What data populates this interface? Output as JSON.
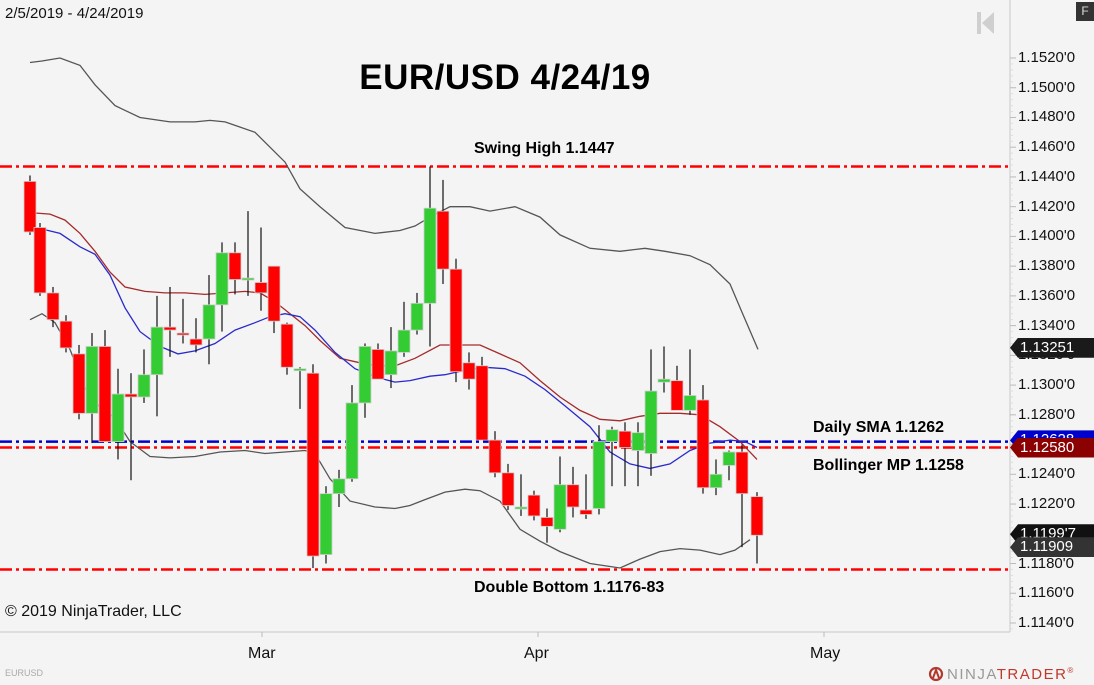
{
  "header": {
    "date_range": "2/5/2019 - 4/24/2019",
    "f_button": "F",
    "nav_icon": "go-to-start-icon"
  },
  "chart_title": "EUR/USD 4/24/19",
  "annotations": {
    "swing_high": "Swing High 1.1447",
    "daily_sma": "Daily SMA 1.1262",
    "bollinger_mp": "Bollinger MP 1.1258",
    "double_bottom": "Double Bottom 1.1176-83"
  },
  "footer": {
    "copyright": "© 2019 NinjaTrader, LLC",
    "instrument": "EURUSD",
    "brand_a": "NINJA",
    "brand_b": "TRADER",
    "brand_mark": "®"
  },
  "x_axis": {
    "labels": [
      {
        "text": "Mar",
        "x": 262
      },
      {
        "text": "Apr",
        "x": 538
      },
      {
        "text": "May",
        "x": 824
      }
    ]
  },
  "y_axis": {
    "ticks": [
      "1.1520'0",
      "1.1500'0",
      "1.1480'0",
      "1.1460'0",
      "1.1440'0",
      "1.1420'0",
      "1.1400'0",
      "1.1380'0",
      "1.1360'0",
      "1.1340'0",
      "1.1320'0",
      "1.1300'0",
      "1.1280'0",
      "1.1260'0",
      "1.1240'0",
      "1.1220'0",
      "1.1200'0",
      "1.1180'0",
      "1.1160'0",
      "1.1140'0"
    ]
  },
  "price_tags": [
    {
      "text": "1.13251",
      "price": 1.13251,
      "bg": "#1a1a1a",
      "fg": "#ffffff"
    },
    {
      "text": "1.12628",
      "price": 1.12628,
      "bg": "#0000cc",
      "fg": "#ffffff"
    },
    {
      "text": "1.12580",
      "price": 1.1258,
      "bg": "#8b0000",
      "fg": "#ffffff"
    },
    {
      "text": "1.1199'7",
      "price": 1.11997,
      "bg": "#111111",
      "fg": "#ffffff"
    },
    {
      "text": "1.11909",
      "price": 1.11909,
      "bg": "#333333",
      "fg": "#ffffff"
    }
  ],
  "colors": {
    "up": "#33cc33",
    "down": "#ff0000",
    "sma": "#2a2acc",
    "bollinger_mid": "#a52a2a",
    "bollinger_band": "#555555",
    "hline_red": "#ff0000",
    "hline_blue": "#0000cc",
    "background": "#f4f4f4"
  },
  "chart_data": {
    "type": "candlestick",
    "title": "EUR/USD 4/24/19",
    "subtitle": "2/5/2019 - 4/24/2019",
    "xlabel": "",
    "ylabel": "",
    "ylim": [
      1.113,
      1.1535
    ],
    "x_ticks": [
      "Mar",
      "Apr",
      "May"
    ],
    "horizontal_lines": [
      {
        "label": "Swing High 1.1447",
        "price": 1.1447,
        "color": "#ff0000"
      },
      {
        "label": "Daily SMA 1.1262",
        "price": 1.1262,
        "color": "#0000cc"
      },
      {
        "label": "Bollinger MP 1.1258",
        "price": 1.1258,
        "color": "#ff0000"
      },
      {
        "label": "Double Bottom 1.1176-83",
        "price": 1.1176,
        "color": "#ff0000"
      }
    ],
    "candles": [
      {
        "x": 30,
        "o": 1.1437,
        "h": 1.1441,
        "l": 1.1401,
        "c": 1.1403
      },
      {
        "x": 40,
        "o": 1.1406,
        "h": 1.1409,
        "l": 1.136,
        "c": 1.1362
      },
      {
        "x": 53,
        "o": 1.1362,
        "h": 1.1366,
        "l": 1.1339,
        "c": 1.1344
      },
      {
        "x": 66,
        "o": 1.1343,
        "h": 1.1347,
        "l": 1.1322,
        "c": 1.1325
      },
      {
        "x": 79,
        "o": 1.1321,
        "h": 1.1327,
        "l": 1.1277,
        "c": 1.1281
      },
      {
        "x": 92,
        "o": 1.1281,
        "h": 1.1335,
        "l": 1.1261,
        "c": 1.1326
      },
      {
        "x": 105,
        "o": 1.1326,
        "h": 1.1337,
        "l": 1.1263,
        "c": 1.1262
      },
      {
        "x": 118,
        "o": 1.1262,
        "h": 1.1311,
        "l": 1.125,
        "c": 1.1294
      },
      {
        "x": 131,
        "o": 1.1294,
        "h": 1.1308,
        "l": 1.1236,
        "c": 1.1292
      },
      {
        "x": 144,
        "o": 1.1292,
        "h": 1.1324,
        "l": 1.1288,
        "c": 1.1307
      },
      {
        "x": 157,
        "o": 1.1307,
        "h": 1.136,
        "l": 1.1279,
        "c": 1.1339
      },
      {
        "x": 170,
        "o": 1.1339,
        "h": 1.1366,
        "l": 1.1319,
        "c": 1.1337
      },
      {
        "x": 183,
        "o": 1.1335,
        "h": 1.1358,
        "l": 1.1328,
        "c": 1.1334
      },
      {
        "x": 196,
        "o": 1.1331,
        "h": 1.1345,
        "l": 1.1322,
        "c": 1.1327
      },
      {
        "x": 209,
        "o": 1.1331,
        "h": 1.1374,
        "l": 1.1314,
        "c": 1.1354
      },
      {
        "x": 222,
        "o": 1.1354,
        "h": 1.1396,
        "l": 1.1336,
        "c": 1.1389
      },
      {
        "x": 235,
        "o": 1.1389,
        "h": 1.1396,
        "l": 1.1361,
        "c": 1.1371
      },
      {
        "x": 248,
        "o": 1.1371,
        "h": 1.1417,
        "l": 1.136,
        "c": 1.1372
      },
      {
        "x": 261,
        "o": 1.1369,
        "h": 1.1406,
        "l": 1.135,
        "c": 1.1362
      },
      {
        "x": 274,
        "o": 1.138,
        "h": 1.138,
        "l": 1.1335,
        "c": 1.1343
      },
      {
        "x": 287,
        "o": 1.1341,
        "h": 1.1342,
        "l": 1.1307,
        "c": 1.1312
      },
      {
        "x": 300,
        "o": 1.1311,
        "h": 1.1312,
        "l": 1.1284,
        "c": 1.1311
      },
      {
        "x": 313,
        "o": 1.1308,
        "h": 1.1314,
        "l": 1.1177,
        "c": 1.1185
      },
      {
        "x": 326,
        "o": 1.1186,
        "h": 1.1232,
        "l": 1.118,
        "c": 1.1227
      },
      {
        "x": 339,
        "o": 1.1227,
        "h": 1.1243,
        "l": 1.1218,
        "c": 1.1237
      },
      {
        "x": 352,
        "o": 1.1237,
        "h": 1.13,
        "l": 1.1235,
        "c": 1.1288
      },
      {
        "x": 365,
        "o": 1.1288,
        "h": 1.1328,
        "l": 1.1278,
        "c": 1.1326
      },
      {
        "x": 378,
        "o": 1.1324,
        "h": 1.1328,
        "l": 1.1305,
        "c": 1.1304
      },
      {
        "x": 391,
        "o": 1.1307,
        "h": 1.1339,
        "l": 1.1298,
        "c": 1.1323
      },
      {
        "x": 404,
        "o": 1.1322,
        "h": 1.1356,
        "l": 1.1319,
        "c": 1.1337
      },
      {
        "x": 417,
        "o": 1.1337,
        "h": 1.1362,
        "l": 1.1334,
        "c": 1.1355
      },
      {
        "x": 430,
        "o": 1.1355,
        "h": 1.1447,
        "l": 1.1326,
        "c": 1.1419
      },
      {
        "x": 443,
        "o": 1.1417,
        "h": 1.1438,
        "l": 1.1368,
        "c": 1.1378
      },
      {
        "x": 456,
        "o": 1.1378,
        "h": 1.1385,
        "l": 1.1302,
        "c": 1.1309
      },
      {
        "x": 469,
        "o": 1.1315,
        "h": 1.1322,
        "l": 1.1297,
        "c": 1.1304
      },
      {
        "x": 482,
        "o": 1.1313,
        "h": 1.1319,
        "l": 1.1268,
        "c": 1.1263
      },
      {
        "x": 495,
        "o": 1.1263,
        "h": 1.1269,
        "l": 1.1238,
        "c": 1.1241
      },
      {
        "x": 508,
        "o": 1.1241,
        "h": 1.1247,
        "l": 1.1216,
        "c": 1.1219
      },
      {
        "x": 521,
        "o": 1.1218,
        "h": 1.124,
        "l": 1.1212,
        "c": 1.1218
      },
      {
        "x": 534,
        "o": 1.1226,
        "h": 1.1229,
        "l": 1.1209,
        "c": 1.1212
      },
      {
        "x": 547,
        "o": 1.1211,
        "h": 1.1217,
        "l": 1.1194,
        "c": 1.1205
      },
      {
        "x": 560,
        "o": 1.1203,
        "h": 1.1252,
        "l": 1.1201,
        "c": 1.1233
      },
      {
        "x": 573,
        "o": 1.1233,
        "h": 1.1245,
        "l": 1.1211,
        "c": 1.1218
      },
      {
        "x": 586,
        "o": 1.1216,
        "h": 1.124,
        "l": 1.121,
        "c": 1.1213
      },
      {
        "x": 599,
        "o": 1.1217,
        "h": 1.1273,
        "l": 1.1213,
        "c": 1.1262
      },
      {
        "x": 612,
        "o": 1.1262,
        "h": 1.1272,
        "l": 1.1232,
        "c": 1.127
      },
      {
        "x": 625,
        "o": 1.1269,
        "h": 1.1275,
        "l": 1.1232,
        "c": 1.1258
      },
      {
        "x": 638,
        "o": 1.1256,
        "h": 1.1275,
        "l": 1.1232,
        "c": 1.1268
      },
      {
        "x": 651,
        "o": 1.1254,
        "h": 1.1324,
        "l": 1.1239,
        "c": 1.1296
      },
      {
        "x": 664,
        "o": 1.1302,
        "h": 1.1326,
        "l": 1.1295,
        "c": 1.1304
      },
      {
        "x": 677,
        "o": 1.1303,
        "h": 1.1313,
        "l": 1.1283,
        "c": 1.1283
      },
      {
        "x": 690,
        "o": 1.1283,
        "h": 1.1324,
        "l": 1.128,
        "c": 1.1293
      },
      {
        "x": 703,
        "o": 1.129,
        "h": 1.13,
        "l": 1.1227,
        "c": 1.1231
      },
      {
        "x": 716,
        "o": 1.1231,
        "h": 1.125,
        "l": 1.1226,
        "c": 1.124
      },
      {
        "x": 729,
        "o": 1.1246,
        "h": 1.1256,
        "l": 1.1236,
        "c": 1.1255
      },
      {
        "x": 742,
        "o": 1.1255,
        "h": 1.126,
        "l": 1.1191,
        "c": 1.1227
      },
      {
        "x": 757,
        "o": 1.1225,
        "h": 1.1228,
        "l": 1.118,
        "c": 1.1199
      }
    ],
    "series": [
      {
        "name": "Bollinger Upper",
        "color": "#555555",
        "points": [
          [
            30,
            1.1517
          ],
          [
            42,
            1.1518
          ],
          [
            60,
            1.152
          ],
          [
            80,
            1.1515
          ],
          [
            95,
            1.1502
          ],
          [
            115,
            1.1488
          ],
          [
            140,
            1.148
          ],
          [
            170,
            1.1477
          ],
          [
            195,
            1.1477
          ],
          [
            210,
            1.1478
          ],
          [
            225,
            1.1477
          ],
          [
            238,
            1.1474
          ],
          [
            255,
            1.147
          ],
          [
            270,
            1.146
          ],
          [
            285,
            1.145
          ],
          [
            300,
            1.1432
          ],
          [
            320,
            1.142
          ],
          [
            345,
            1.1406
          ],
          [
            375,
            1.1402
          ],
          [
            400,
            1.1404
          ],
          [
            415,
            1.1407
          ],
          [
            430,
            1.1413
          ],
          [
            450,
            1.142
          ],
          [
            470,
            1.142
          ],
          [
            490,
            1.1417
          ],
          [
            515,
            1.142
          ],
          [
            540,
            1.1413
          ],
          [
            560,
            1.1401
          ],
          [
            590,
            1.1392
          ],
          [
            620,
            1.139
          ],
          [
            645,
            1.1392
          ],
          [
            665,
            1.139
          ],
          [
            690,
            1.1387
          ],
          [
            710,
            1.1381
          ],
          [
            730,
            1.1368
          ],
          [
            742,
            1.1349
          ],
          [
            758,
            1.1324
          ]
        ]
      },
      {
        "name": "Bollinger Middle",
        "color": "#a52a2a",
        "points": [
          [
            30,
            1.1416
          ],
          [
            50,
            1.1415
          ],
          [
            65,
            1.1411
          ],
          [
            80,
            1.1402
          ],
          [
            95,
            1.139
          ],
          [
            110,
            1.1376
          ],
          [
            125,
            1.1366
          ],
          [
            145,
            1.1363
          ],
          [
            165,
            1.1362
          ],
          [
            185,
            1.1362
          ],
          [
            205,
            1.1361
          ],
          [
            225,
            1.1362
          ],
          [
            245,
            1.1363
          ],
          [
            260,
            1.1362
          ],
          [
            275,
            1.1356
          ],
          [
            290,
            1.1348
          ],
          [
            305,
            1.134
          ],
          [
            320,
            1.133
          ],
          [
            340,
            1.1318
          ],
          [
            360,
            1.1315
          ],
          [
            378,
            1.1313
          ],
          [
            395,
            1.1313
          ],
          [
            415,
            1.1318
          ],
          [
            440,
            1.1327
          ],
          [
            460,
            1.1327
          ],
          [
            480,
            1.1327
          ],
          [
            500,
            1.1321
          ],
          [
            520,
            1.1315
          ],
          [
            540,
            1.1303
          ],
          [
            560,
            1.1292
          ],
          [
            580,
            1.1283
          ],
          [
            600,
            1.1277
          ],
          [
            620,
            1.1276
          ],
          [
            640,
            1.1279
          ],
          [
            660,
            1.1281
          ],
          [
            680,
            1.1281
          ],
          [
            700,
            1.128
          ],
          [
            720,
            1.1272
          ],
          [
            740,
            1.1262
          ],
          [
            757,
            1.125
          ]
        ]
      },
      {
        "name": "SMA",
        "color": "#2a2acc",
        "points": [
          [
            30,
            1.1405
          ],
          [
            42,
            1.1405
          ],
          [
            60,
            1.1402
          ],
          [
            80,
            1.1393
          ],
          [
            95,
            1.1388
          ],
          [
            110,
            1.1374
          ],
          [
            125,
            1.1352
          ],
          [
            140,
            1.1336
          ],
          [
            160,
            1.1326
          ],
          [
            178,
            1.1321
          ],
          [
            195,
            1.1323
          ],
          [
            215,
            1.1328
          ],
          [
            235,
            1.1337
          ],
          [
            255,
            1.1342
          ],
          [
            270,
            1.1346
          ],
          [
            285,
            1.1348
          ],
          [
            300,
            1.1346
          ],
          [
            315,
            1.1337
          ],
          [
            335,
            1.1322
          ],
          [
            355,
            1.1311
          ],
          [
            378,
            1.1305
          ],
          [
            395,
            1.1302
          ],
          [
            410,
            1.1303
          ],
          [
            430,
            1.1306
          ],
          [
            445,
            1.1307
          ],
          [
            465,
            1.131
          ],
          [
            485,
            1.1312
          ],
          [
            505,
            1.1311
          ],
          [
            525,
            1.1306
          ],
          [
            545,
            1.1297
          ],
          [
            565,
            1.1286
          ],
          [
            590,
            1.1272
          ],
          [
            610,
            1.1255
          ],
          [
            630,
            1.1247
          ],
          [
            650,
            1.1244
          ],
          [
            670,
            1.1247
          ],
          [
            690,
            1.1256
          ],
          [
            710,
            1.1261
          ],
          [
            730,
            1.1263
          ],
          [
            745,
            1.1262
          ],
          [
            757,
            1.1258
          ]
        ]
      },
      {
        "name": "Bollinger Lower",
        "color": "#555555",
        "points": [
          [
            30,
            1.1344
          ],
          [
            42,
            1.1348
          ],
          [
            55,
            1.1342
          ],
          [
            70,
            1.1324
          ],
          [
            85,
            1.1298
          ],
          [
            100,
            1.1285
          ],
          [
            115,
            1.1278
          ],
          [
            130,
            1.1262
          ],
          [
            150,
            1.1252
          ],
          [
            170,
            1.1251
          ],
          [
            195,
            1.1252
          ],
          [
            220,
            1.1255
          ],
          [
            245,
            1.1256
          ],
          [
            265,
            1.1254
          ],
          [
            285,
            1.1255
          ],
          [
            305,
            1.1256
          ],
          [
            315,
            1.1254
          ],
          [
            330,
            1.1237
          ],
          [
            350,
            1.1222
          ],
          [
            375,
            1.1218
          ],
          [
            395,
            1.1217
          ],
          [
            410,
            1.1219
          ],
          [
            425,
            1.1223
          ],
          [
            445,
            1.1228
          ],
          [
            465,
            1.123
          ],
          [
            480,
            1.1229
          ],
          [
            500,
            1.1222
          ],
          [
            520,
            1.1203
          ],
          [
            540,
            1.1195
          ],
          [
            560,
            1.1188
          ],
          [
            590,
            1.118
          ],
          [
            620,
            1.1177
          ],
          [
            640,
            1.1183
          ],
          [
            660,
            1.1188
          ],
          [
            680,
            1.119
          ],
          [
            700,
            1.1189
          ],
          [
            720,
            1.1186
          ],
          [
            735,
            1.1189
          ],
          [
            750,
            1.1196
          ]
        ]
      }
    ]
  }
}
